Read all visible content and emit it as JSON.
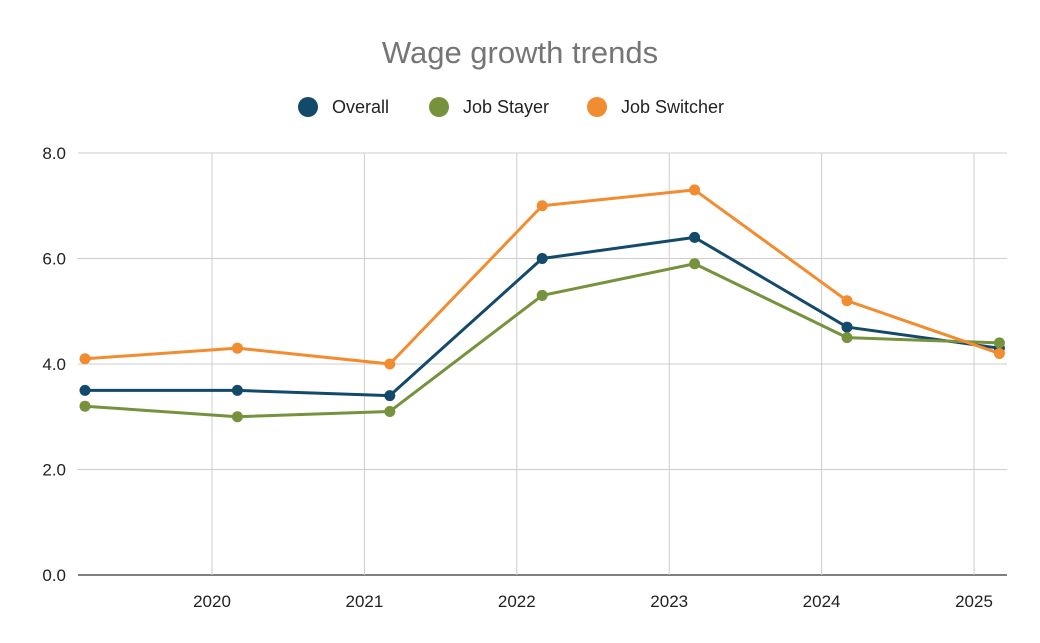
{
  "chart_data": {
    "type": "line",
    "title": "Wage growth trends",
    "xlabel": "",
    "ylabel": "",
    "x": [
      "2019-03",
      "2020-03",
      "2021-03",
      "2022-03",
      "2023-03",
      "2024-03",
      "2025-03"
    ],
    "x_tick_labels": [
      "2020",
      "2021",
      "2022",
      "2023",
      "2024",
      "2025"
    ],
    "y_tick_labels": [
      "0.0",
      "2.0",
      "4.0",
      "6.0",
      "8.0"
    ],
    "ylim": [
      0,
      8
    ],
    "grid": true,
    "legend": "top",
    "series": [
      {
        "name": "Overall",
        "color": "#134a6b",
        "values": [
          3.5,
          3.5,
          3.4,
          6.0,
          6.4,
          4.7,
          4.3
        ]
      },
      {
        "name": "Job Stayer",
        "color": "#76923c",
        "values": [
          3.2,
          3.0,
          3.1,
          5.3,
          5.9,
          4.5,
          4.4
        ]
      },
      {
        "name": "Job Switcher",
        "color": "#f28c30",
        "values": [
          4.1,
          4.3,
          4.0,
          7.0,
          7.3,
          5.2,
          4.2
        ]
      }
    ]
  }
}
